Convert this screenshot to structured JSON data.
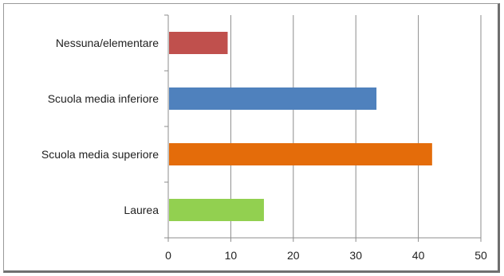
{
  "chart_data": {
    "type": "bar",
    "orientation": "horizontal",
    "categories": [
      "Nessuna/elementare",
      "Scuola media inferiore",
      "Scuola media superiore",
      "Laurea"
    ],
    "values": [
      9.5,
      33.3,
      42.2,
      15.3
    ],
    "colors": [
      "#c0504d",
      "#4f81bd",
      "#e46c0a",
      "#92d050"
    ],
    "xlim": [
      0,
      50
    ],
    "xticks": [
      "0",
      "10",
      "20",
      "30",
      "40",
      "50"
    ],
    "title": "",
    "xlabel": "",
    "ylabel": "",
    "grid": "vertical",
    "legend": "none"
  }
}
